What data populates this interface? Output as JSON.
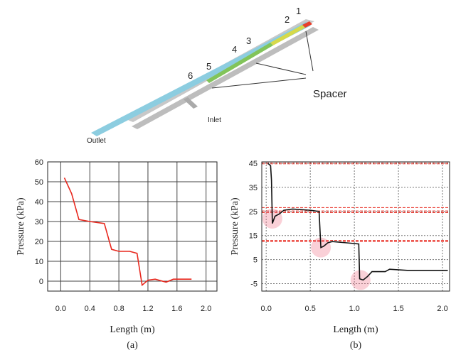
{
  "diagram": {
    "numbers": [
      "1",
      "2",
      "3",
      "4",
      "5",
      "6"
    ],
    "spacer": "Spacer",
    "inlet": "Inlet",
    "outlet": "Outlet"
  },
  "chart_data": [
    {
      "type": "line",
      "caption": "(a)",
      "xlabel": "Length (m)",
      "ylabel": "Pressure (kPa)",
      "x": [
        0.05,
        0.15,
        0.25,
        0.4,
        0.6,
        0.7,
        0.8,
        0.95,
        1.05,
        1.12,
        1.2,
        1.3,
        1.45,
        1.55,
        1.8
      ],
      "series": [
        {
          "color": "#e8281e",
          "values": [
            52,
            44,
            31,
            30,
            29,
            16,
            15,
            15,
            14,
            -2,
            0.5,
            1,
            -0.5,
            1,
            1
          ]
        }
      ],
      "xlim": [
        -0.18,
        2.15
      ],
      "ylim": [
        -5,
        60
      ],
      "xticks": [
        {
          "value": 0,
          "label": "0.0"
        },
        {
          "value": 0.4,
          "label": "0.4"
        },
        {
          "value": 0.8,
          "label": "0.8"
        },
        {
          "value": 1.2,
          "label": "1.2"
        },
        {
          "value": 1.6,
          "label": "1.6"
        },
        {
          "value": 2,
          "label": "2.0"
        }
      ],
      "yticks": [
        0,
        10,
        20,
        30,
        40,
        50,
        60
      ],
      "grid": "solid"
    },
    {
      "type": "line",
      "caption": "(b)",
      "xlabel": "Length (m)",
      "ylabel": "Pressure (kPa)",
      "x": [
        0.02,
        0.05,
        0.06,
        0.07,
        0.1,
        0.15,
        0.2,
        0.3,
        0.5,
        0.6,
        0.62,
        0.65,
        0.7,
        0.75,
        0.9,
        1.05,
        1.06,
        1.1,
        1.15,
        1.2,
        1.35,
        1.4,
        1.6,
        2.06
      ],
      "series": [
        {
          "color": "#111111",
          "values": [
            45,
            44,
            38,
            20,
            23,
            24,
            25.5,
            26,
            25.5,
            25,
            10,
            10.5,
            12,
            12.5,
            12,
            11.5,
            -3,
            -3.5,
            -2,
            0,
            0,
            1,
            0.5,
            0.5
          ]
        }
      ],
      "xlim": [
        -0.05,
        2.08
      ],
      "ylim": [
        -8.1,
        45.6
      ],
      "xticks": [
        {
          "value": 0,
          "label": "0.0"
        },
        {
          "value": 0.5,
          "label": "0.5"
        },
        {
          "value": 1,
          "label": "1.0"
        },
        {
          "value": 1.5,
          "label": "1.5"
        },
        {
          "value": 2,
          "label": "2.0"
        }
      ],
      "yticks": [
        -5,
        5,
        15,
        25,
        35,
        45
      ],
      "grid": "dotted",
      "hlines": {
        "color": "#e8281e",
        "values": [
          45.5,
          44.8,
          26.6,
          25.2,
          24.5,
          13,
          12.4
        ]
      },
      "highlights": {
        "color": "rgba(240,120,140,0.35)",
        "x": [
          0.07,
          0.62,
          1.07
        ],
        "y": [
          22,
          10,
          -3.5
        ]
      }
    }
  ]
}
